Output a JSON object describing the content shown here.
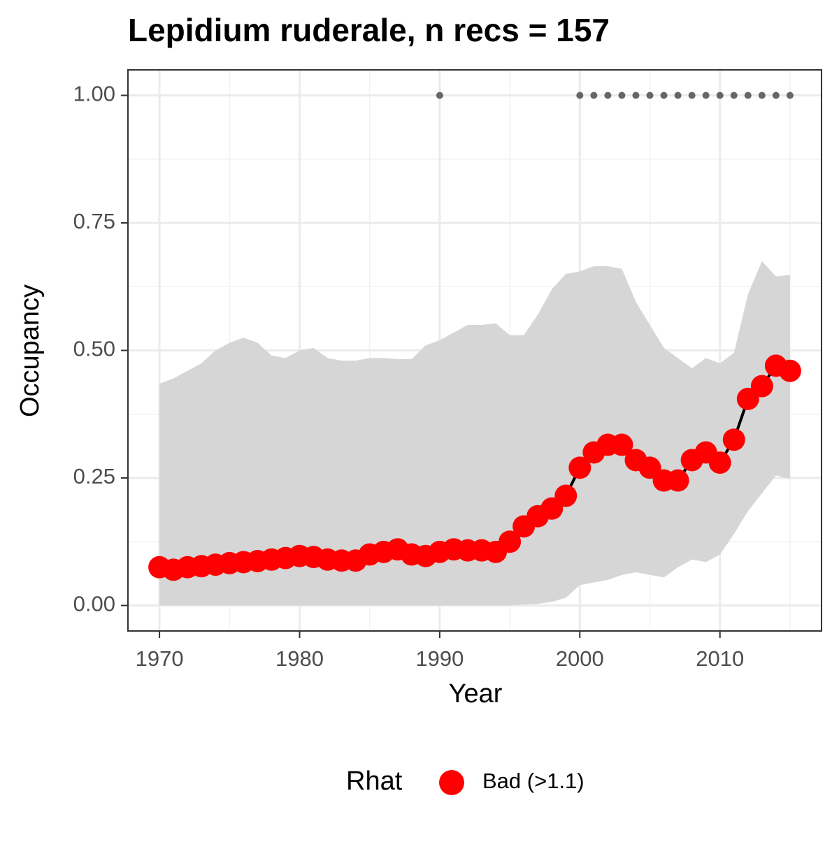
{
  "chart_data": {
    "type": "line",
    "title": "Lepidium ruderale, n recs = 157",
    "x_label": "Year",
    "y_label": "Occupancy",
    "legend_title": "Rhat",
    "legend_position": "bottom",
    "grid": true,
    "xlim": [
      1967.75,
      2017.25
    ],
    "ylim": [
      -0.05,
      1.05
    ],
    "xticks": [
      1970,
      1980,
      1990,
      2000,
      2010
    ],
    "yticks": [
      {
        "value": 0,
        "label": "0.00"
      },
      {
        "value": 0.25,
        "label": "0.25"
      },
      {
        "value": 0.5,
        "label": "0.50"
      },
      {
        "value": 0.75,
        "label": "0.75"
      },
      {
        "value": 1,
        "label": "1.00"
      }
    ],
    "x": [
      1970,
      1971,
      1972,
      1973,
      1974,
      1975,
      1976,
      1977,
      1978,
      1979,
      1980,
      1981,
      1982,
      1983,
      1984,
      1985,
      1986,
      1987,
      1988,
      1989,
      1990,
      1991,
      1992,
      1993,
      1994,
      1995,
      1996,
      1997,
      1998,
      1999,
      2000,
      2001,
      2002,
      2003,
      2004,
      2005,
      2006,
      2007,
      2008,
      2009,
      2010,
      2011,
      2012,
      2013,
      2014,
      2015
    ],
    "series": [
      {
        "name": "Bad (>1.1)",
        "color": "#ff0000",
        "line_color": "#000000",
        "values": [
          0.075,
          0.07,
          0.075,
          0.077,
          0.08,
          0.083,
          0.085,
          0.087,
          0.09,
          0.093,
          0.097,
          0.095,
          0.09,
          0.088,
          0.088,
          0.1,
          0.105,
          0.11,
          0.1,
          0.097,
          0.105,
          0.11,
          0.108,
          0.108,
          0.105,
          0.125,
          0.155,
          0.175,
          0.19,
          0.215,
          0.27,
          0.3,
          0.315,
          0.315,
          0.285,
          0.27,
          0.245,
          0.245,
          0.285,
          0.3,
          0.28,
          0.325,
          0.405,
          0.43,
          0.47,
          0.46
        ],
        "upper": [
          0.435,
          0.445,
          0.46,
          0.475,
          0.5,
          0.515,
          0.525,
          0.515,
          0.49,
          0.485,
          0.5,
          0.505,
          0.485,
          0.48,
          0.48,
          0.485,
          0.485,
          0.483,
          0.483,
          0.51,
          0.52,
          0.535,
          0.55,
          0.55,
          0.553,
          0.53,
          0.53,
          0.57,
          0.62,
          0.65,
          0.655,
          0.665,
          0.665,
          0.66,
          0.595,
          0.55,
          0.505,
          0.485,
          0.465,
          0.485,
          0.475,
          0.495,
          0.61,
          0.675,
          0.645,
          0.648
        ],
        "lower": [
          0,
          0,
          0,
          0,
          0,
          0,
          0,
          0,
          0,
          0,
          0,
          0,
          0,
          0,
          0,
          0,
          0,
          0,
          0,
          0,
          0,
          0,
          0,
          0,
          0,
          0,
          0.002,
          0.003,
          0.007,
          0.015,
          0.04,
          0.045,
          0.05,
          0.06,
          0.065,
          0.06,
          0.055,
          0.075,
          0.09,
          0.085,
          0.1,
          0.14,
          0.185,
          0.22,
          0.255,
          0.248
        ]
      }
    ],
    "band_color": "#d6d6d6",
    "records": {
      "color": "#666666",
      "x": [
        1990,
        2000,
        2001,
        2002,
        2003,
        2004,
        2005,
        2006,
        2007,
        2008,
        2009,
        2010,
        2011,
        2012,
        2013,
        2014,
        2015
      ],
      "values": [
        1,
        1,
        1,
        1,
        1,
        1,
        1,
        1,
        1,
        1,
        1,
        1,
        1,
        1,
        1,
        1,
        1
      ]
    }
  }
}
